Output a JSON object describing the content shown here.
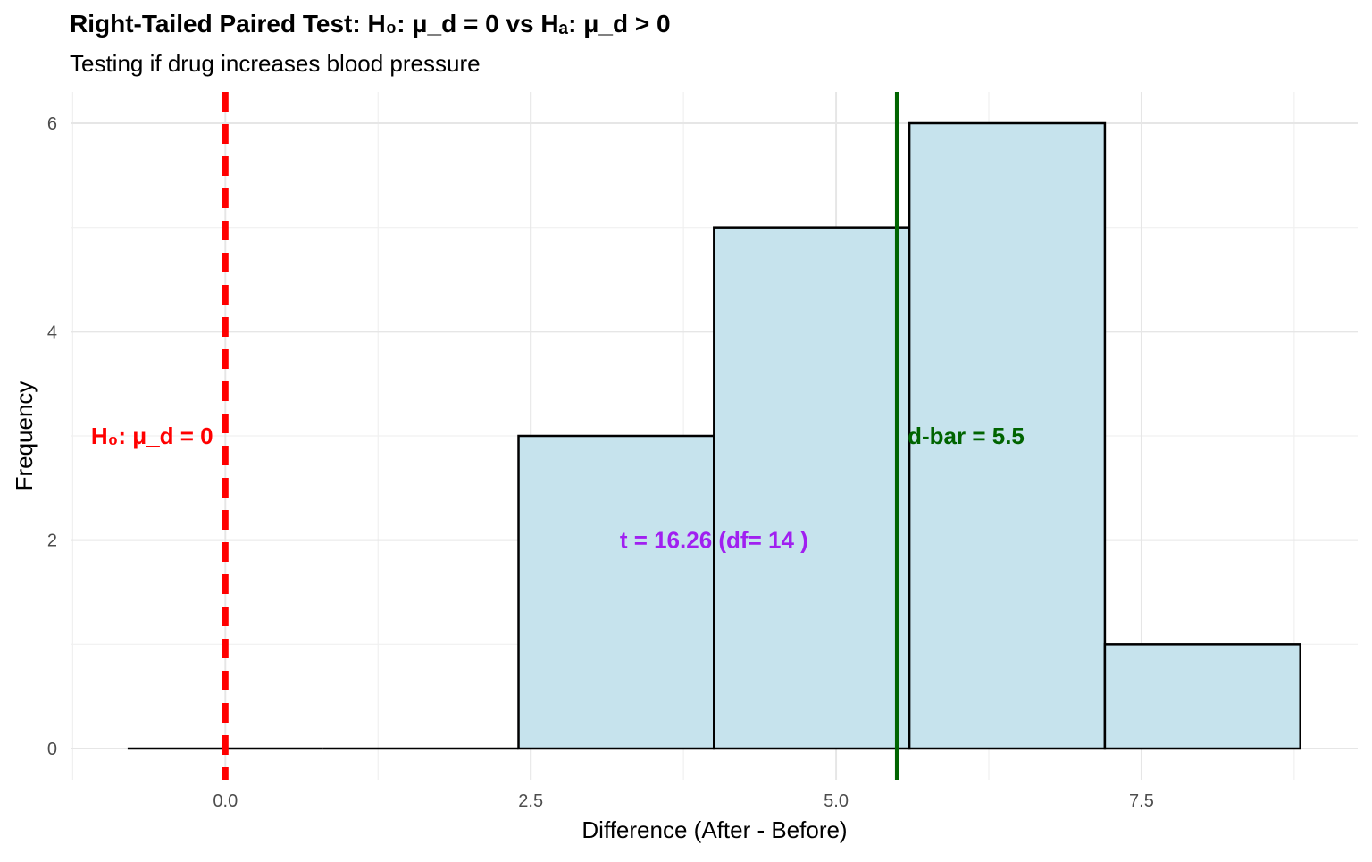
{
  "chart_data": {
    "type": "bar",
    "title": "Right-Tailed Paired Test: H₀: μ_d = 0 vs Hₐ: μ_d > 0",
    "subtitle": "Testing if drug increases blood pressure",
    "xlabel": "Difference (After - Before)",
    "ylabel": "Frequency",
    "xlim": [
      -1.26,
      9.27
    ],
    "ylim": [
      -0.3,
      6.3
    ],
    "xticks": [
      0,
      2.5,
      5,
      7.5
    ],
    "xtick_labels": [
      "0.0",
      "2.5",
      "5.0",
      "7.5"
    ],
    "yticks": [
      0,
      2,
      4,
      6
    ],
    "ytick_labels": [
      "0",
      "2",
      "4",
      "6"
    ],
    "grid": true,
    "bins": [
      {
        "start": -0.8,
        "end": 0.8,
        "count": 0
      },
      {
        "start": 0.8,
        "end": 2.4,
        "count": 0
      },
      {
        "start": 2.4,
        "end": 4.0,
        "count": 3
      },
      {
        "start": 4.0,
        "end": 5.6,
        "count": 5
      },
      {
        "start": 5.6,
        "end": 7.2,
        "count": 6
      },
      {
        "start": 7.2,
        "end": 8.8,
        "count": 1
      }
    ],
    "bar_fill": "#c6e3ed",
    "null_line": {
      "x": 0,
      "color": "#ff0000",
      "style": "dashed",
      "label": "H₀: μ_d = 0",
      "label_x": -0.1,
      "label_y": 3
    },
    "mean_line": {
      "x": 5.5,
      "color": "#006400",
      "label": "d-bar = 5.5",
      "label_x": 5.6,
      "label_y": 3
    },
    "t_annotation": {
      "label": "t = 16.26 (df= 14 )",
      "x": 4.0,
      "y": 2,
      "color": "#a020f0"
    }
  }
}
